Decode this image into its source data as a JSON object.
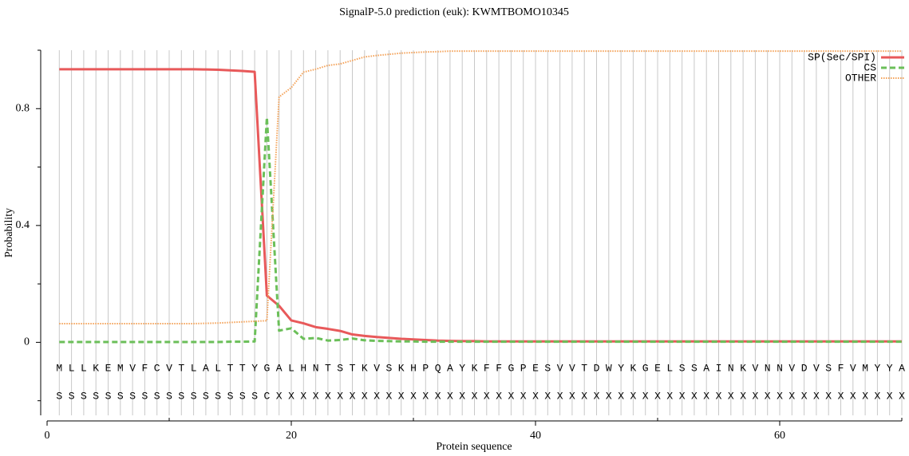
{
  "chart_data": {
    "type": "line",
    "title": "SignalP-5.0 prediction (euk):  KWMTBOMO10345",
    "x_label": "Protein sequence",
    "y_label": "Probability",
    "xlim": [
      0,
      70
    ],
    "xticks": [
      0,
      20,
      40,
      60
    ],
    "x_minor_ticks": [
      10,
      30,
      50,
      70
    ],
    "ylim": [
      -0.25,
      1.0
    ],
    "yticks": [
      0,
      0.4,
      0.8
    ],
    "y_minor_ticks": [
      -0.2,
      0.2,
      0.6,
      1.0
    ],
    "grid": true,
    "legend": "upper right",
    "x": [
      1,
      2,
      3,
      4,
      5,
      6,
      7,
      8,
      9,
      10,
      11,
      12,
      13,
      14,
      15,
      16,
      17,
      18,
      19,
      20,
      21,
      22,
      23,
      24,
      25,
      26,
      27,
      28,
      29,
      30,
      31,
      32,
      33,
      34,
      35,
      36,
      37,
      38,
      39,
      40,
      41,
      42,
      43,
      44,
      45,
      46,
      47,
      48,
      49,
      50,
      51,
      52,
      53,
      54,
      55,
      56,
      57,
      58,
      59,
      60,
      61,
      62,
      63,
      64,
      65,
      66,
      67,
      68,
      69,
      70
    ],
    "residues": [
      "M",
      "L",
      "L",
      "K",
      "E",
      "M",
      "V",
      "F",
      "C",
      "V",
      "T",
      "L",
      "A",
      "L",
      "T",
      "T",
      "Y",
      "G",
      "A",
      "L",
      "H",
      "N",
      "T",
      "S",
      "T",
      "K",
      "V",
      "S",
      "K",
      "H",
      "P",
      "Q",
      "A",
      "Y",
      "K",
      "F",
      "F",
      "G",
      "P",
      "E",
      "S",
      "V",
      "V",
      "T",
      "D",
      "W",
      "Y",
      "K",
      "G",
      "E",
      "L",
      "S",
      "S",
      "A",
      "I",
      "N",
      "K",
      "V",
      "N",
      "N",
      "V",
      "D",
      "V",
      "S",
      "F",
      "V",
      "M",
      "Y",
      "Y",
      "A"
    ],
    "predicted_labels": [
      "S",
      "S",
      "S",
      "S",
      "S",
      "S",
      "S",
      "S",
      "S",
      "S",
      "S",
      "S",
      "S",
      "S",
      "S",
      "S",
      "S",
      "C",
      "X",
      "X",
      "X",
      "X",
      "X",
      "X",
      "X",
      "X",
      "X",
      "X",
      "X",
      "X",
      "X",
      "X",
      "X",
      "X",
      "X",
      "X",
      "X",
      "X",
      "X",
      "X",
      "X",
      "X",
      "X",
      "X",
      "X",
      "X",
      "X",
      "X",
      "X",
      "X",
      "X",
      "X",
      "X",
      "X",
      "X",
      "X",
      "X",
      "X",
      "X",
      "X",
      "X",
      "X",
      "X",
      "X",
      "X",
      "X",
      "X",
      "X",
      "X",
      "X"
    ],
    "series": [
      {
        "name": "SP(Sec/SPI)",
        "color": "#e8595a",
        "dash": "solid",
        "values": [
          0.935,
          0.935,
          0.935,
          0.935,
          0.935,
          0.935,
          0.935,
          0.935,
          0.935,
          0.935,
          0.935,
          0.935,
          0.934,
          0.933,
          0.931,
          0.929,
          0.926,
          0.16,
          0.125,
          0.075,
          0.065,
          0.052,
          0.046,
          0.039,
          0.027,
          0.022,
          0.018,
          0.015,
          0.012,
          0.01,
          0.008,
          0.006,
          0.005,
          0.004,
          0.004,
          0.003,
          0.003,
          0.003,
          0.003,
          0.003,
          0.003,
          0.003,
          0.003,
          0.003,
          0.003,
          0.003,
          0.003,
          0.003,
          0.003,
          0.003,
          0.003,
          0.003,
          0.003,
          0.003,
          0.003,
          0.003,
          0.003,
          0.003,
          0.003,
          0.003,
          0.003,
          0.003,
          0.003,
          0.003,
          0.003,
          0.003,
          0.003,
          0.003,
          0.003,
          0.003
        ]
      },
      {
        "name": "CS",
        "color": "#6bbf59",
        "dash": "dashed",
        "values": [
          0.001,
          0.001,
          0.001,
          0.001,
          0.001,
          0.001,
          0.001,
          0.001,
          0.001,
          0.001,
          0.001,
          0.001,
          0.001,
          0.001,
          0.002,
          0.002,
          0.003,
          0.77,
          0.04,
          0.048,
          0.012,
          0.015,
          0.006,
          0.008,
          0.013,
          0.007,
          0.005,
          0.004,
          0.003,
          0.003,
          0.002,
          0.002,
          0.002,
          0.002,
          0.002,
          0.002,
          0.002,
          0.002,
          0.002,
          0.002,
          0.002,
          0.002,
          0.002,
          0.002,
          0.002,
          0.002,
          0.002,
          0.002,
          0.002,
          0.002,
          0.002,
          0.002,
          0.002,
          0.002,
          0.002,
          0.002,
          0.002,
          0.002,
          0.002,
          0.002,
          0.002,
          0.002,
          0.002,
          0.002,
          0.002,
          0.002,
          0.002,
          0.002,
          0.002,
          0.002
        ]
      },
      {
        "name": "OTHER",
        "color": "#f4a35a",
        "dash": "dotted",
        "values": [
          0.064,
          0.064,
          0.064,
          0.064,
          0.064,
          0.064,
          0.064,
          0.064,
          0.064,
          0.064,
          0.064,
          0.064,
          0.065,
          0.066,
          0.068,
          0.07,
          0.072,
          0.074,
          0.84,
          0.872,
          0.925,
          0.935,
          0.948,
          0.953,
          0.965,
          0.977,
          0.982,
          0.986,
          0.99,
          0.992,
          0.994,
          0.995,
          0.997,
          0.997,
          0.997,
          0.997,
          0.997,
          0.997,
          0.997,
          0.997,
          0.997,
          0.997,
          0.997,
          0.997,
          0.997,
          0.997,
          0.997,
          0.997,
          0.997,
          0.997,
          0.997,
          0.997,
          0.997,
          0.997,
          0.997,
          0.997,
          0.997,
          0.997,
          0.997,
          0.997,
          0.997,
          0.997,
          0.997,
          0.997,
          0.997,
          0.997,
          0.997,
          0.997,
          0.997,
          0.997
        ]
      }
    ]
  }
}
